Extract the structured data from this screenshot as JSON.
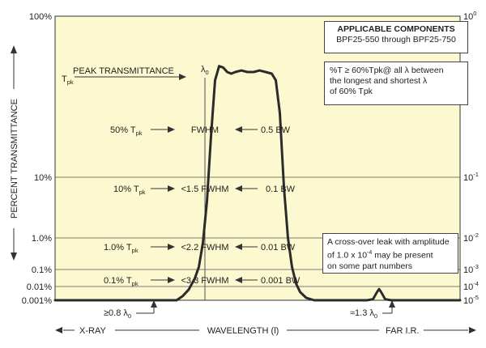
{
  "colors": {
    "plot_bg": "#fcf8cf",
    "curve": "#2b2b2b",
    "axis": "#333333"
  },
  "chart_data": {
    "type": "line",
    "title": "",
    "y_axis_left_title": "PERCENT TRANSMITTANCE",
    "x_axis_title": "WAVELENGTH (l)",
    "x_left_region": "X-RAY",
    "x_right_region": "FAR I.R.",
    "y_ticks_left": [
      "100%",
      "10%",
      "1.0%",
      "0.1%",
      "0.01%",
      "0.001%"
    ],
    "y_ticks_right": [
      {
        "base": "10",
        "exp": "0"
      },
      {
        "base": "10",
        "exp": "-1"
      },
      {
        "base": "10",
        "exp": "-2"
      },
      {
        "base": "10",
        "exp": "-3"
      },
      {
        "base": "10",
        "exp": "-4"
      },
      {
        "base": "10",
        "exp": "-5"
      }
    ],
    "y_log_range": [
      0.001,
      100
    ],
    "x_ratio_range": [
      0.5,
      1.5
    ],
    "x_unit_note": "wavelength as multiple of center wavelength λ0",
    "series": [
      {
        "points": [
          [
            0.5,
            0.001
          ],
          [
            0.8,
            0.001
          ],
          [
            0.815,
            0.002
          ],
          [
            0.83,
            0.006
          ],
          [
            0.845,
            0.03
          ],
          [
            0.855,
            0.12
          ],
          [
            0.865,
            0.7
          ],
          [
            0.875,
            4
          ],
          [
            0.885,
            18
          ],
          [
            0.895,
            40
          ],
          [
            0.905,
            49
          ],
          [
            0.915,
            48
          ],
          [
            0.925,
            45
          ],
          [
            0.935,
            44
          ],
          [
            0.945,
            45
          ],
          [
            0.96,
            46
          ],
          [
            0.975,
            45
          ],
          [
            0.99,
            45
          ],
          [
            1.005,
            46
          ],
          [
            1.02,
            45
          ],
          [
            1.035,
            44
          ],
          [
            1.045,
            40
          ],
          [
            1.055,
            25
          ],
          [
            1.065,
            7
          ],
          [
            1.075,
            1
          ],
          [
            1.085,
            0.12
          ],
          [
            1.095,
            0.015
          ],
          [
            1.105,
            0.004
          ],
          [
            1.12,
            0.0015
          ],
          [
            1.14,
            0.001
          ],
          [
            1.27,
            0.001
          ],
          [
            1.285,
            0.0012
          ],
          [
            1.295,
            0.004
          ],
          [
            1.3,
            0.0065
          ],
          [
            1.305,
            0.004
          ],
          [
            1.315,
            0.0012
          ],
          [
            1.33,
            0.001
          ],
          [
            1.5,
            0.001
          ]
        ]
      }
    ],
    "annotations": {
      "peak_label": "PEAK TRANSMITTANCE",
      "lambda0": {
        "base": "λ",
        "sub": "0"
      },
      "tpk": {
        "base": "T",
        "sub": "pk"
      },
      "rows": [
        {
          "left": "50% T",
          "left_sub": "pk",
          "mid": "FWHM",
          "right": "0.5 BW"
        },
        {
          "left": "10% T",
          "left_sub": "pk",
          "mid": "<1.5 FWHM",
          "right": "0.1 BW"
        },
        {
          "left": "1.0% T",
          "left_sub": "pk",
          "mid": "<2.2 FWHM",
          "right": "0.01 BW"
        },
        {
          "left": "0.1% T",
          "left_sub": "pk",
          "mid": "<3.3 FWHM",
          "right": "0.001 BW"
        }
      ],
      "bottom_left": {
        "text": "≥0.8 λ",
        "sub": "0"
      },
      "bottom_right": {
        "text": "≈1.3 λ",
        "sub": "0"
      }
    }
  },
  "info_boxes": {
    "applicable_title": "APPLICABLE COMPONENTS",
    "applicable_range": "BPF25-550 through BPF25-750",
    "transmit_line1": "%T ≥ 60%Tpk@ all λ between",
    "transmit_line2": "the longest and shortest λ",
    "transmit_line3": "of 60% Tpk",
    "crossover_line1": "A cross-over leak with amplitude",
    "crossover_line2_a": "of 1.0 x 10",
    "crossover_line2_exp": "-4",
    "crossover_line2_b": " may be present",
    "crossover_line3": "on some part numbers"
  }
}
